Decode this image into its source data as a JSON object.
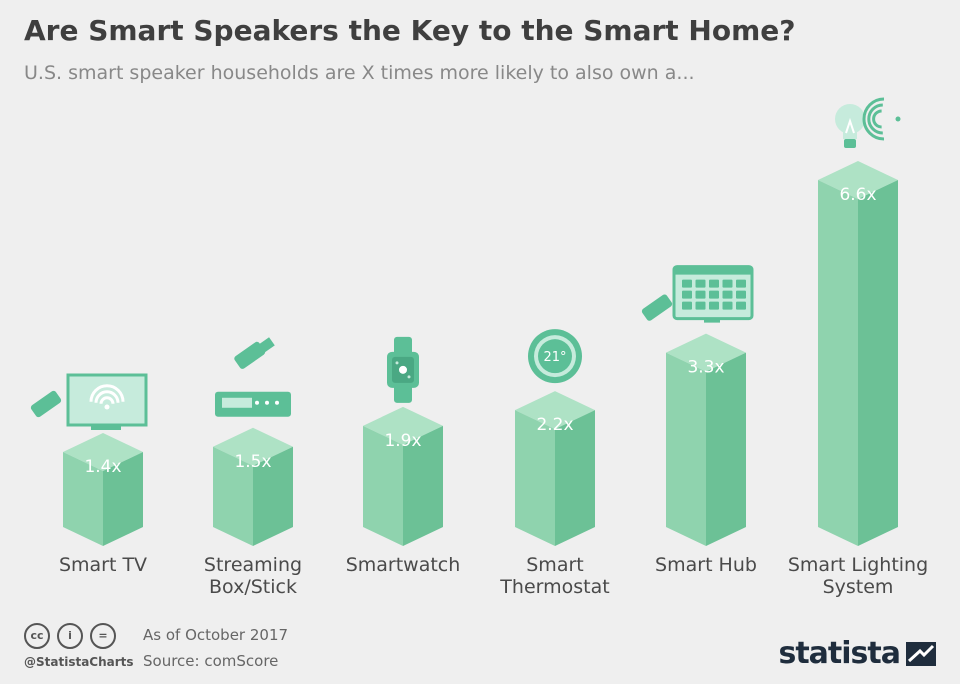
{
  "header": {
    "title": "Are Smart Speakers the Key to the Smart Home?",
    "subtitle": "U.S. smart speaker households are X times more likely to also own a..."
  },
  "chart_data": {
    "type": "bar",
    "title": "Are Smart Speakers the Key to the Smart Home?",
    "subtitle": "U.S. smart speaker households are X times more likely to also own a...",
    "categories": [
      "Smart TV",
      "Streaming Box/Stick",
      "Smartwatch",
      "Smart Thermostat",
      "Smart Hub",
      "Smart Lighting System"
    ],
    "category_lines": [
      [
        "Smart TV"
      ],
      [
        "Streaming",
        "Box/Stick"
      ],
      [
        "Smartwatch"
      ],
      [
        "Smart",
        "Thermostat"
      ],
      [
        "Smart Hub"
      ],
      [
        "Smart Lighting",
        "System"
      ]
    ],
    "values": [
      1.4,
      1.5,
      1.9,
      2.2,
      3.3,
      6.6
    ],
    "value_labels": [
      "1.4x",
      "1.5x",
      "1.9x",
      "2.2x",
      "3.3x",
      "6.6x"
    ],
    "icons": [
      "tv-icon",
      "streaming-stick-icon",
      "smartwatch-icon",
      "thermostat-icon",
      "smart-hub-icon",
      "lightbulb-icon"
    ],
    "thermostat_reading": "21°",
    "ylim": [
      0,
      6.6
    ],
    "grid": false,
    "colors": {
      "front": "#8fd3ae",
      "side": "#6cc196",
      "top": "#aee2c5",
      "icon": "#5cbf97",
      "icon_light": "#c6ebdc"
    }
  },
  "footer": {
    "license_icons": [
      "cc",
      "i",
      "="
    ],
    "handle": "@StatistaCharts",
    "date_note": "As of October 2017",
    "source": "Source: comScore",
    "brand": "statista"
  }
}
